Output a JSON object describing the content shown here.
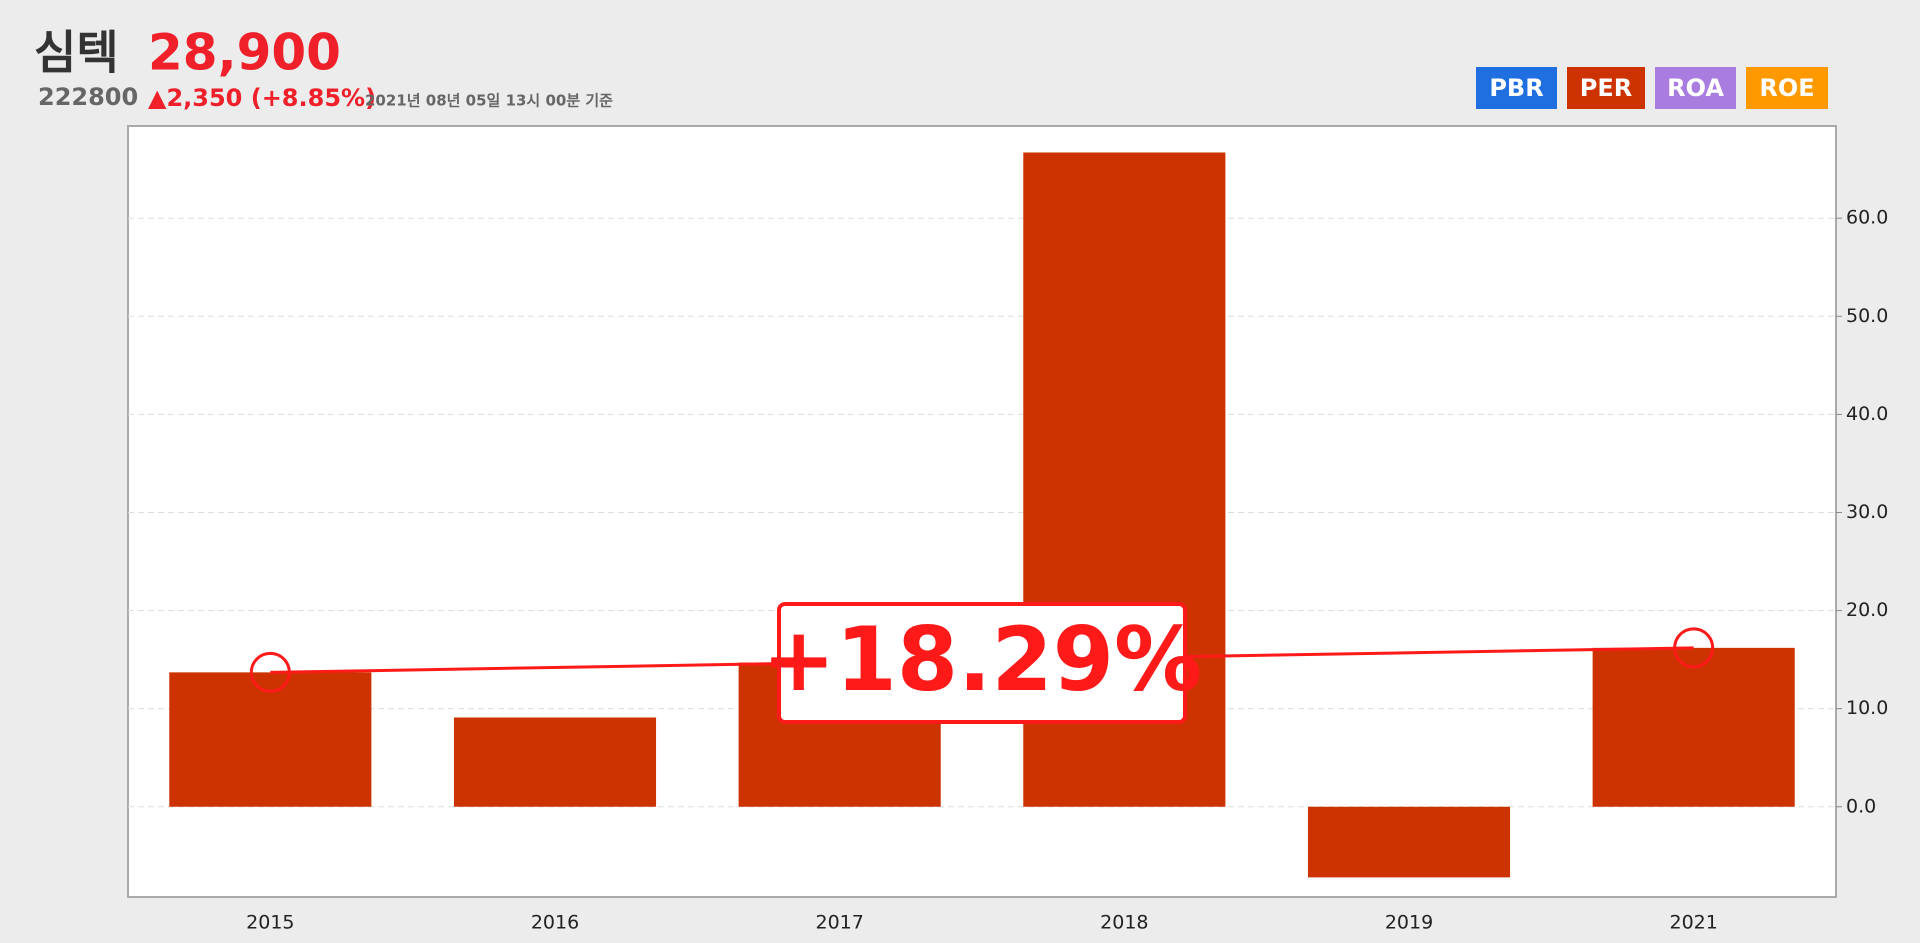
{
  "header": {
    "name": "심텍",
    "price": "28,900",
    "code": "222800",
    "change": "▲2,350 (+8.85%)",
    "timestamp": "2021년 08년 05일 13시 00분 기준"
  },
  "buttons": [
    {
      "label": "PBR",
      "color": "#1f6fe0"
    },
    {
      "label": "PER",
      "color": "#cc3300"
    },
    {
      "label": "ROA",
      "color": "#a97ce0"
    },
    {
      "label": "ROE",
      "color": "#ff9900"
    }
  ],
  "chart_data": {
    "type": "bar",
    "categories": [
      "2015",
      "2016",
      "2017",
      "2018",
      "2019",
      "2021"
    ],
    "values": [
      13.7,
      9.1,
      14.7,
      66.7,
      -7.2,
      16.2
    ],
    "color": "#cc3300",
    "ylim": [
      -9.2,
      69.4
    ],
    "yticks": [
      {
        "value": 0,
        "label": "0.0"
      },
      {
        "value": 10,
        "label": "10.0"
      },
      {
        "value": 20,
        "label": "20.0"
      },
      {
        "value": 30,
        "label": "30.0"
      },
      {
        "value": 40,
        "label": "40.0"
      },
      {
        "value": 50,
        "label": "50.0"
      },
      {
        "value": 60,
        "label": "60.0"
      }
    ],
    "grid": true,
    "annotation": "+18.29%",
    "annotation_color": "#ff1a1a"
  }
}
